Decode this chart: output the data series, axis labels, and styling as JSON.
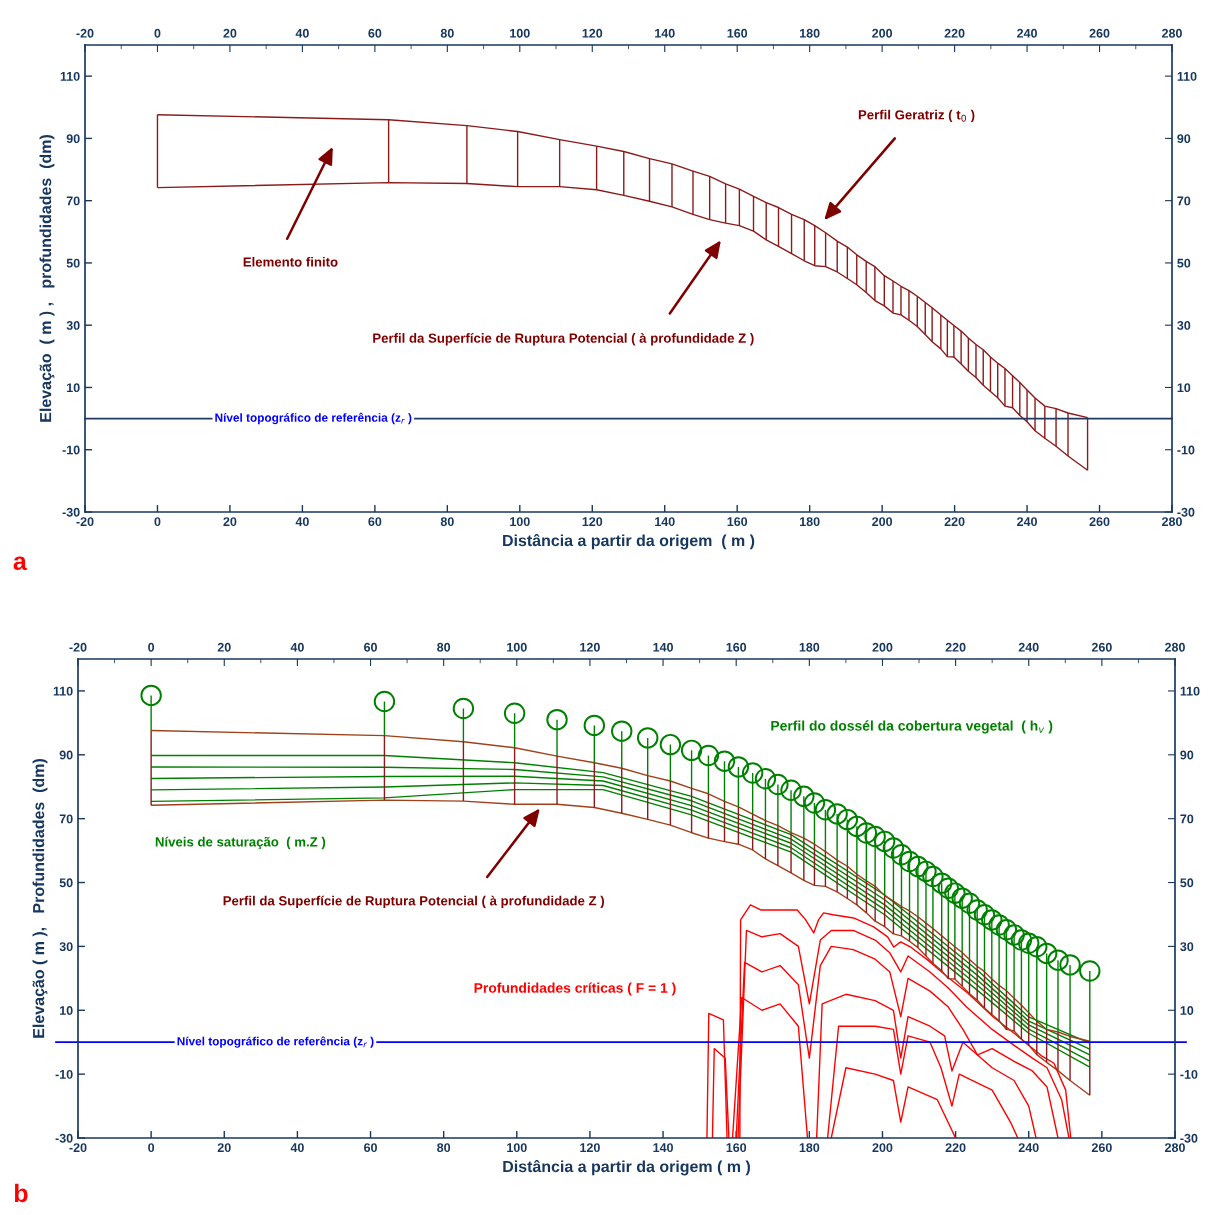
{
  "chart_data": [
    {
      "type": "line",
      "xlim": [
        -20,
        280
      ],
      "xticks": [
        -20,
        0,
        20,
        40,
        60,
        80,
        100,
        120,
        140,
        160,
        180,
        200,
        220,
        240,
        260,
        280
      ],
      "x2lim": [
        -20,
        280
      ],
      "x2ticks": [
        -20,
        0,
        20,
        40,
        60,
        80,
        100,
        120,
        140,
        160,
        180,
        200,
        220,
        240,
        260,
        280
      ],
      "ylim": [
        -30,
        120
      ],
      "yticks": [
        -30,
        -10,
        10,
        30,
        50,
        70,
        90,
        110
      ],
      "y2lim": [
        -30,
        120
      ],
      "y2ticks": [
        -30,
        -10,
        10,
        30,
        50,
        70,
        90,
        110
      ],
      "xlabel": "Distância a partir da origem  ( m )",
      "ylabel": "Elevação  ( m ) ,   profundidades  (dm)",
      "grid": false,
      "legend": false,
      "ref_lines": [
        {
          "axis": "y",
          "value": 0,
          "label": "Nível topográfico de referência (z$_{r}$ )",
          "color": "#1f3864"
        }
      ],
      "annotations": [
        "Perfil Geratriz ( t$_{0}$ )",
        "Elemento finito",
        "Perfil da Superfície de Ruptura Potencial ( à profundidade Z )",
        "a"
      ],
      "series": [
        {
          "color": "#8b1a1a",
          "x": [
            0,
            63.8,
            85.4,
            99.4,
            111,
            121.2,
            128.7,
            135.8,
            142,
            147.8,
            152.4,
            156.8,
            160.6,
            164.5,
            168,
            171.4,
            175,
            178.5,
            181.4,
            184.4,
            187.6,
            190.4,
            193,
            195.6,
            198,
            200.6,
            203,
            205.2,
            207.4,
            209.7,
            211.9,
            213.8,
            216.2,
            218,
            219.8,
            221.8,
            223.8,
            225.9,
            227.9,
            229.9,
            231.9,
            233.9,
            236,
            238,
            240,
            242.2,
            244.9,
            248,
            251.3,
            256.7
          ],
          "values": [
            97.6,
            96,
            94.1,
            92.2,
            89.6,
            87.5,
            85.8,
            83.5,
            81.8,
            79.5,
            77.8,
            75.4,
            73.7,
            71.4,
            69.4,
            67.8,
            65.6,
            63.9,
            62,
            59.7,
            57,
            55.1,
            52.6,
            50.5,
            48.8,
            45.9,
            44.2,
            42.5,
            41.1,
            39.3,
            37.3,
            35.6,
            33.3,
            31.6,
            29.9,
            28.1,
            25.9,
            23.8,
            22.1,
            19.8,
            17.8,
            16.1,
            13.8,
            11.6,
            9.2,
            6.6,
            4.0,
            3.2,
            1.8,
            0.3
          ]
        },
        {
          "color": "#8b1a1a",
          "x": [
            0,
            63.8,
            85.4,
            99.4,
            111,
            121.2,
            128.7,
            135.8,
            142,
            147.8,
            152.4,
            156.8,
            160.6,
            164.5,
            168,
            171.4,
            175,
            178.5,
            181.4,
            184.4,
            187.6,
            190.4,
            193,
            195.6,
            198,
            200.6,
            203,
            205.2,
            207.4,
            209.7,
            211.9,
            213.8,
            216.2,
            218,
            219.8,
            221.8,
            223.8,
            225.9,
            227.9,
            229.9,
            231.9,
            233.9,
            236,
            238,
            240,
            242.2,
            244.9,
            248,
            251.3,
            256.7
          ],
          "values": [
            74.2,
            75.8,
            75.5,
            74.5,
            74.5,
            73.5,
            71.7,
            69.8,
            68,
            65.6,
            63.9,
            62.8,
            62,
            60.2,
            57.4,
            55.3,
            53,
            50.7,
            49.1,
            48.8,
            47.1,
            45,
            43,
            40.5,
            37.9,
            36.2,
            33.9,
            33.3,
            31.6,
            29.6,
            27,
            24.7,
            22.4,
            19.9,
            19.8,
            17.5,
            15.2,
            13.2,
            10.7,
            8.7,
            6.7,
            4.0,
            3.5,
            1.0,
            -1,
            -3.9,
            -6.3,
            -8.9,
            -12,
            -16.6
          ]
        },
        {
          "color": "#8b1a1a",
          "x": [
            0,
            0,
            null,
            63.8,
            63.8,
            null,
            85.4,
            85.4,
            null,
            99.4,
            99.4,
            null,
            111,
            111,
            null,
            121.2,
            121.2,
            null,
            128.7,
            128.7,
            null,
            135.8,
            135.8,
            null,
            142,
            142,
            null,
            147.8,
            147.8,
            null,
            152.4,
            152.4,
            null,
            156.8,
            156.8,
            null,
            160.6,
            160.6,
            null,
            164.5,
            164.5,
            null,
            168,
            168,
            null,
            171.4,
            171.4,
            null,
            175,
            175,
            null,
            178.5,
            178.5,
            null,
            181.4,
            181.4,
            null,
            184.4,
            184.4,
            null,
            187.6,
            187.6,
            null,
            190.4,
            190.4,
            null,
            193,
            193,
            null,
            195.6,
            195.6,
            null,
            198,
            198,
            null,
            200.6,
            200.6,
            null,
            203,
            203,
            null,
            205.2,
            205.2,
            null,
            207.4,
            207.4,
            null,
            209.7,
            209.7,
            null,
            211.9,
            211.9,
            null,
            213.8,
            213.8,
            null,
            216.2,
            216.2,
            null,
            218,
            218,
            null,
            219.8,
            219.8,
            null,
            221.8,
            221.8,
            null,
            223.8,
            223.8,
            null,
            225.9,
            225.9,
            null,
            227.9,
            227.9,
            null,
            229.9,
            229.9,
            null,
            231.9,
            231.9,
            null,
            233.9,
            233.9,
            null,
            236,
            236,
            null,
            238,
            238,
            null,
            240,
            240,
            null,
            242.2,
            242.2,
            null,
            244.9,
            244.9,
            null,
            248,
            248,
            null,
            251.3,
            251.3,
            null,
            256.7,
            256.7
          ],
          "values": [
            97.6,
            74.2,
            null,
            96,
            75.8,
            null,
            94.1,
            75.5,
            null,
            92.2,
            74.5,
            null,
            89.6,
            74.5,
            null,
            87.5,
            73.5,
            null,
            85.8,
            71.7,
            null,
            83.5,
            69.8,
            null,
            81.8,
            68,
            null,
            79.5,
            65.6,
            null,
            77.8,
            63.9,
            null,
            75.4,
            62.8,
            null,
            73.7,
            62,
            null,
            71.4,
            60.2,
            null,
            69.4,
            57.4,
            null,
            67.8,
            55.3,
            null,
            65.6,
            53,
            null,
            63.9,
            50.7,
            null,
            62,
            49.1,
            null,
            59.7,
            48.8,
            null,
            57,
            47.1,
            null,
            55.1,
            45,
            null,
            52.6,
            43,
            null,
            50.5,
            40.5,
            null,
            48.8,
            37.9,
            null,
            45.9,
            36.2,
            null,
            44.2,
            33.9,
            null,
            42.5,
            33.3,
            null,
            41.1,
            31.6,
            null,
            39.3,
            29.6,
            null,
            37.3,
            27,
            null,
            35.6,
            24.7,
            null,
            33.3,
            22.4,
            null,
            31.6,
            19.9,
            null,
            29.9,
            19.8,
            null,
            28.1,
            17.5,
            null,
            25.9,
            15.2,
            null,
            23.8,
            13.2,
            null,
            22.1,
            10.7,
            null,
            19.8,
            8.7,
            null,
            17.8,
            6.7,
            null,
            16.1,
            4.0,
            null,
            13.8,
            3.5,
            null,
            11.6,
            1.0,
            null,
            9.2,
            -1,
            null,
            6.6,
            -3.9,
            null,
            4.0,
            -6.3,
            null,
            3.2,
            -8.9,
            null,
            1.8,
            -12,
            null,
            0.3,
            -16.6
          ]
        }
      ]
    },
    {
      "type": "line",
      "xlim": [
        -20,
        280
      ],
      "xticks": [
        -20,
        0,
        20,
        40,
        60,
        80,
        100,
        120,
        140,
        160,
        180,
        200,
        220,
        240,
        260,
        280
      ],
      "x2lim": [
        -20,
        280
      ],
      "x2ticks": [
        -20,
        0,
        20,
        40,
        60,
        80,
        100,
        120,
        140,
        160,
        180,
        200,
        220,
        240,
        260,
        280
      ],
      "ylim": [
        -30,
        120
      ],
      "yticks": [
        -30,
        -10,
        10,
        30,
        50,
        70,
        90,
        110
      ],
      "y2lim": [
        -30,
        120
      ],
      "y2ticks": [
        -30,
        -10,
        10,
        30,
        50,
        70,
        90,
        110
      ],
      "xlabel": "Distância a partir da origem ( m )",
      "ylabel": "Elevação ( m ),   Profundidades  (dm)",
      "grid": false,
      "legend": false,
      "ref_lines": [
        {
          "axis": "y",
          "value": 0,
          "label": "Nível topográfico de referência (z$_{r}$ )",
          "color": "#0000ff"
        }
      ],
      "annotations": [
        "Níveis de saturação  ( m.Z )",
        "Perfil da Superfície de Ruptura Potencial ( à profundidade Z )",
        "Perfil do dossél da cobertura vegetal  ( h$_{v}$ )",
        "Profundidades críticas ( F = 1 )",
        "b"
      ],
      "series": [
        {
          "color": "#008000",
          "x": [
            0,
            63.8,
            99.4,
            123.6,
            147.8,
            175,
            200.6,
            225.9,
            240,
            256.7
          ],
          "values": [
            89.8,
            89.8,
            87.5,
            84.4,
            77,
            65,
            46.1,
            22.6,
            7.9,
            -0.3
          ]
        },
        {
          "color": "#008000",
          "x": [
            0,
            63.8,
            99.4,
            123.6,
            147.8,
            175,
            200.6,
            225.9,
            240,
            256.7
          ],
          "values": [
            86.2,
            86.1,
            85.4,
            83.1,
            75.6,
            63.6,
            44.6,
            21,
            6.6,
            -2.2
          ]
        },
        {
          "color": "#008000",
          "x": [
            0,
            63.8,
            99.4,
            123.6,
            147.8,
            175,
            200.6,
            225.9,
            240,
            256.7
          ],
          "values": [
            82.6,
            83.2,
            83.3,
            81.8,
            74.1,
            62.3,
            43,
            19.5,
            5.4,
            -4
          ]
        },
        {
          "color": "#008000",
          "x": [
            0,
            63.8,
            99.4,
            123.6,
            147.8,
            175,
            200.6,
            225.9,
            240,
            256.7
          ],
          "values": [
            79,
            79.9,
            81.2,
            80.4,
            72.7,
            60.9,
            41.5,
            17.9,
            4.1,
            -5.9
          ]
        },
        {
          "color": "#008000",
          "x": [
            0,
            63.8,
            99.4,
            123.6,
            147.8,
            175,
            200.6,
            225.9,
            240,
            256.7
          ],
          "values": [
            75.4,
            76.5,
            79.1,
            79.1,
            71.2,
            59.5,
            39.9,
            16.3,
            2.8,
            -7.8
          ]
        },
        {
          "color": "#ff0000",
          "x": [
            161,
            161.2,
            163.9,
            166.7,
            169.4,
            176.7,
            179,
            181.2,
            182.5,
            183.9,
            186.5,
            192.1,
            197.6,
            201.4,
            203.1,
            205,
            207.7,
            212.4,
            217.8,
            223.3,
            230.4,
            236,
            240.6,
            243.3,
            246.9,
            250.1,
            251.5
          ],
          "values": [
            -30,
            38.3,
            43,
            41.4,
            41.4,
            41.4,
            38.3,
            34.2,
            38.3,
            40.5,
            39.9,
            38.9,
            36.1,
            33,
            29.8,
            31.4,
            29.8,
            25.7,
            20.4,
            15.4,
            7.8,
            2.8,
            -1.5,
            -4.1,
            -6.6,
            -15,
            -30
          ]
        },
        {
          "color": "#ff0000",
          "x": [
            160.5,
            162.8,
            167,
            172,
            177,
            180,
            183,
            186,
            192,
            198,
            202,
            205,
            207,
            213,
            218,
            223,
            230,
            236,
            241,
            245,
            249,
            251
          ],
          "values": [
            -30,
            35,
            33,
            34,
            30,
            12,
            32,
            35,
            35,
            32,
            28,
            22,
            27,
            22,
            17,
            11,
            4,
            -1,
            -5,
            -8,
            -18,
            -30
          ]
        },
        {
          "color": "#ff0000",
          "x": [
            160,
            162.3,
            167,
            172,
            177,
            180,
            183,
            186,
            192,
            198,
            202,
            205,
            207,
            213,
            218,
            222,
            226,
            230,
            236,
            241,
            245,
            248
          ],
          "values": [
            -30,
            25,
            22,
            24,
            18,
            -5,
            24,
            30,
            29,
            26,
            22,
            8,
            20,
            16,
            11,
            4,
            -4,
            -2,
            -6,
            -9,
            -14,
            -30
          ]
        },
        {
          "color": "#ff0000",
          "x": [
            159,
            161.5,
            167,
            172,
            177,
            179.5,
            null,
            182,
            183.5,
            190,
            198,
            203,
            205,
            207,
            213,
            217,
            219,
            222,
            230,
            236,
            240,
            242
          ],
          "values": [
            -30,
            14,
            10,
            12,
            5,
            -30,
            null,
            -30,
            12,
            15,
            13,
            10,
            -5,
            8,
            5,
            2,
            -9,
            0,
            -8,
            -12,
            -20,
            -30
          ]
        },
        {
          "color": "#ff0000",
          "x": [
            152,
            152.5,
            156.5,
            157.5,
            null,
            185,
            188,
            198,
            203,
            205,
            207,
            213,
            216,
            219,
            221,
            230,
            235,
            237
          ],
          "values": [
            -30,
            9,
            7,
            -30,
            null,
            -30,
            5,
            5,
            4,
            -10,
            2,
            0,
            -8,
            -20,
            -10,
            -15,
            -25,
            -30
          ]
        },
        {
          "color": "#ff0000",
          "x": [
            153.5,
            154,
            157,
            158,
            null,
            186,
            190,
            198,
            203,
            205,
            207,
            215,
            220
          ],
          "values": [
            -30,
            -2,
            -5,
            -30,
            null,
            -30,
            -8,
            -10,
            -12,
            -25,
            -14,
            -18,
            -30
          ]
        },
        {
          "color": "#a0401a",
          "x": [
            0,
            63.8,
            85.4,
            99.4,
            111,
            121.2,
            128.7,
            135.8,
            142,
            147.8,
            152.4,
            156.8,
            160.6,
            164.5,
            168,
            171.4,
            175,
            178.5,
            181.4,
            184.4,
            187.6,
            190.4,
            193,
            195.6,
            198,
            200.6,
            203,
            205.2,
            207.4,
            209.7,
            211.9,
            213.8,
            216.2,
            218,
            219.8,
            221.8,
            223.8,
            225.9,
            227.9,
            229.9,
            231.9,
            233.9,
            236,
            238,
            240,
            242.2,
            244.9,
            248,
            251.3,
            256.7
          ],
          "values": [
            97.6,
            96,
            94.1,
            92.2,
            89.6,
            87.5,
            85.8,
            83.5,
            81.8,
            79.5,
            77.8,
            75.4,
            73.7,
            71.4,
            69.4,
            67.8,
            65.6,
            63.9,
            62,
            59.7,
            57,
            55.1,
            52.6,
            50.5,
            48.8,
            45.9,
            44.2,
            42.5,
            41.1,
            39.3,
            37.3,
            35.6,
            33.3,
            31.6,
            29.9,
            28.1,
            25.9,
            23.8,
            22.1,
            19.8,
            17.8,
            16.1,
            13.8,
            11.6,
            9.2,
            6.6,
            4.0,
            3.2,
            1.8,
            0.3
          ]
        },
        {
          "color": "#a0401a",
          "x": [
            0,
            63.8,
            85.4,
            99.4,
            111,
            121.2,
            128.7,
            135.8,
            142,
            147.8,
            152.4,
            156.8,
            160.6,
            164.5,
            168,
            171.4,
            175,
            178.5,
            181.4,
            184.4,
            187.6,
            190.4,
            193,
            195.6,
            198,
            200.6,
            203,
            205.2,
            207.4,
            209.7,
            211.9,
            213.8,
            216.2,
            218,
            219.8,
            221.8,
            223.8,
            225.9,
            227.9,
            229.9,
            231.9,
            233.9,
            236,
            238,
            240,
            242.2,
            244.9,
            248,
            251.3,
            256.7
          ],
          "values": [
            74.2,
            75.8,
            75.5,
            74.5,
            74.5,
            73.5,
            71.7,
            69.8,
            68,
            65.6,
            63.9,
            62.8,
            62,
            60.2,
            57.4,
            55.3,
            53,
            50.7,
            49.1,
            48.8,
            47.1,
            45,
            43,
            40.5,
            37.9,
            36.2,
            33.9,
            33.3,
            31.6,
            29.6,
            27,
            24.7,
            22.4,
            19.9,
            19.8,
            17.5,
            15.2,
            13.2,
            10.7,
            8.7,
            6.7,
            4.0,
            3.5,
            1.0,
            -1,
            -3.9,
            -6.3,
            -8.9,
            -12,
            -16.6
          ]
        },
        {
          "color": "#8b1a1a",
          "x": [
            0,
            0,
            null,
            63.8,
            63.8,
            null,
            85.4,
            85.4,
            null,
            99.4,
            99.4,
            null,
            111,
            111,
            null,
            121.2,
            121.2,
            null,
            128.7,
            128.7,
            null,
            135.8,
            135.8,
            null,
            142,
            142,
            null,
            147.8,
            147.8,
            null,
            152.4,
            152.4,
            null,
            156.8,
            156.8,
            null,
            160.6,
            160.6,
            null,
            164.5,
            164.5,
            null,
            168,
            168,
            null,
            171.4,
            171.4,
            null,
            175,
            175,
            null,
            178.5,
            178.5,
            null,
            181.4,
            181.4,
            null,
            184.4,
            184.4,
            null,
            187.6,
            187.6,
            null,
            190.4,
            190.4,
            null,
            193,
            193,
            null,
            195.6,
            195.6,
            null,
            198,
            198,
            null,
            200.6,
            200.6,
            null,
            203,
            203,
            null,
            205.2,
            205.2,
            null,
            207.4,
            207.4,
            null,
            209.7,
            209.7,
            null,
            211.9,
            211.9,
            null,
            213.8,
            213.8,
            null,
            216.2,
            216.2,
            null,
            218,
            218,
            null,
            219.8,
            219.8,
            null,
            221.8,
            221.8,
            null,
            223.8,
            223.8,
            null,
            225.9,
            225.9,
            null,
            227.9,
            227.9,
            null,
            229.9,
            229.9,
            null,
            231.9,
            231.9,
            null,
            233.9,
            233.9,
            null,
            236,
            236,
            null,
            238,
            238,
            null,
            240,
            240,
            null,
            242.2,
            242.2,
            null,
            244.9,
            244.9,
            null,
            248,
            248,
            null,
            251.3,
            251.3,
            null,
            256.7,
            256.7
          ],
          "values": [
            97.6,
            74.2,
            null,
            96,
            75.8,
            null,
            94.1,
            75.5,
            null,
            92.2,
            74.5,
            null,
            89.6,
            74.5,
            null,
            87.5,
            73.5,
            null,
            85.8,
            71.7,
            null,
            83.5,
            69.8,
            null,
            81.8,
            68,
            null,
            79.5,
            65.6,
            null,
            77.8,
            63.9,
            null,
            75.4,
            62.8,
            null,
            73.7,
            62,
            null,
            71.4,
            60.2,
            null,
            69.4,
            57.4,
            null,
            67.8,
            55.3,
            null,
            65.6,
            53,
            null,
            63.9,
            50.7,
            null,
            62,
            49.1,
            null,
            59.7,
            48.8,
            null,
            57,
            47.1,
            null,
            55.1,
            45,
            null,
            52.6,
            43,
            null,
            50.5,
            40.5,
            null,
            48.8,
            37.9,
            null,
            45.9,
            36.2,
            null,
            44.2,
            33.9,
            null,
            42.5,
            33.3,
            null,
            41.1,
            31.6,
            null,
            39.3,
            29.6,
            null,
            37.3,
            27,
            null,
            35.6,
            24.7,
            null,
            33.3,
            22.4,
            null,
            31.6,
            19.9,
            null,
            29.9,
            19.8,
            null,
            28.1,
            17.5,
            null,
            25.9,
            15.2,
            null,
            23.8,
            13.2,
            null,
            22.1,
            10.7,
            null,
            19.8,
            8.7,
            null,
            17.8,
            6.7,
            null,
            16.1,
            4.0,
            null,
            13.8,
            3.5,
            null,
            11.6,
            1.0,
            null,
            9.2,
            -1,
            null,
            6.6,
            -3.9,
            null,
            4.0,
            -6.3,
            null,
            3.2,
            -8.9,
            null,
            1.8,
            -12,
            null,
            0.3,
            -16.6
          ]
        },
        {
          "color": "#008000",
          "x": [
            0,
            0,
            null,
            63.8,
            63.8,
            null,
            85.4,
            85.4,
            null,
            99.4,
            99.4,
            null,
            111,
            111,
            null,
            121.2,
            121.2,
            null,
            128.7,
            128.7,
            null,
            135.8,
            135.8,
            null,
            142,
            142,
            null,
            147.8,
            147.8,
            null,
            152.4,
            152.4,
            null,
            156.8,
            156.8,
            null,
            160.6,
            160.6,
            null,
            164.5,
            164.5,
            null,
            168,
            168,
            null,
            171.4,
            171.4,
            null,
            175,
            175,
            null,
            178.5,
            178.5,
            null,
            181.4,
            181.4,
            null,
            184.4,
            184.4,
            null,
            187.6,
            187.6,
            null,
            190.4,
            190.4,
            null,
            193,
            193,
            null,
            195.6,
            195.6,
            null,
            198,
            198,
            null,
            200.6,
            200.6,
            null,
            203,
            203,
            null,
            205.2,
            205.2,
            null,
            207.4,
            207.4,
            null,
            209.7,
            209.7,
            null,
            211.9,
            211.9,
            null,
            213.8,
            213.8,
            null,
            216.2,
            216.2,
            null,
            218,
            218,
            null,
            219.8,
            219.8,
            null,
            221.8,
            221.8,
            null,
            223.8,
            223.8,
            null,
            225.9,
            225.9,
            null,
            227.9,
            227.9,
            null,
            229.9,
            229.9,
            null,
            231.9,
            231.9,
            null,
            233.9,
            233.9,
            null,
            236,
            236,
            null,
            238,
            238,
            null,
            240,
            240,
            null,
            242.2,
            242.2,
            null,
            244.9,
            244.9,
            null,
            248,
            248,
            null,
            251.3,
            251.3,
            null,
            256.7,
            256.7
          ],
          "values": [
            97.6,
            108.6,
            null,
            96,
            106.7,
            null,
            94.1,
            104.5,
            null,
            92.2,
            103,
            null,
            89.6,
            101,
            null,
            87.5,
            99.2,
            null,
            85.8,
            97.4,
            null,
            83.5,
            95.3,
            null,
            81.8,
            93.2,
            null,
            79.5,
            91.4,
            null,
            77.8,
            89.8,
            null,
            75.4,
            88,
            null,
            73.7,
            86.2,
            null,
            71.4,
            84.3,
            null,
            69.4,
            82.5,
            null,
            67.8,
            80.7,
            null,
            65.6,
            78.9,
            null,
            63.9,
            77,
            null,
            62,
            74.9,
            null,
            59.7,
            72.8,
            null,
            57,
            71.5,
            null,
            55.1,
            69.7,
            null,
            52.6,
            67.6,
            null,
            50.5,
            65.5,
            null,
            48.8,
            64.4,
            null,
            45.9,
            62.9,
            null,
            44.2,
            60.8,
            null,
            42.5,
            58.7,
            null,
            41.1,
            56.6,
            null,
            39.3,
            55,
            null,
            37.3,
            53.5,
            null,
            35.6,
            51.9,
            null,
            33.3,
            49.8,
            null,
            31.6,
            48.2,
            null,
            29.9,
            46.7,
            null,
            28.1,
            45.1,
            null,
            25.9,
            43.5,
            null,
            23.8,
            41.4,
            null,
            22.1,
            39.9,
            null,
            19.8,
            38.3,
            null,
            17.8,
            36.7,
            null,
            16.1,
            35.2,
            null,
            13.8,
            33.6,
            null,
            11.6,
            32,
            null,
            9.2,
            31,
            null,
            6.6,
            29.9,
            null,
            4.0,
            27.8,
            null,
            3.2,
            25.7,
            null,
            1.8,
            24.2,
            null,
            0.3,
            22.3
          ]
        },
        {
          "type": "scatter",
          "color": "#008000",
          "marker": "circle",
          "x": [
            0,
            63.8,
            85.4,
            99.4,
            111,
            121.2,
            128.7,
            135.8,
            142,
            147.8,
            152.4,
            156.8,
            160.6,
            164.5,
            168,
            171.4,
            175,
            178.5,
            181.4,
            184.4,
            187.6,
            190.4,
            193,
            195.6,
            198,
            200.6,
            203,
            205.2,
            207.4,
            209.7,
            211.9,
            213.8,
            216.2,
            218,
            219.8,
            221.8,
            223.8,
            225.9,
            227.9,
            229.9,
            231.9,
            233.9,
            236,
            238,
            240,
            242.2,
            244.9,
            248,
            251.3,
            256.7
          ],
          "values": [
            108.6,
            106.7,
            104.5,
            103,
            101,
            99.2,
            97.4,
            95.3,
            93.2,
            91.4,
            89.8,
            88,
            86.2,
            84.3,
            82.5,
            80.7,
            78.9,
            77,
            74.9,
            72.8,
            71.5,
            69.7,
            67.6,
            65.5,
            64.4,
            62.9,
            60.8,
            58.7,
            56.6,
            55,
            53.5,
            51.9,
            49.8,
            48.2,
            46.7,
            45.1,
            43.5,
            41.4,
            39.9,
            38.3,
            36.7,
            35.2,
            33.6,
            32,
            31,
            29.9,
            27.8,
            25.7,
            24.2,
            22.3
          ]
        }
      ]
    }
  ]
}
